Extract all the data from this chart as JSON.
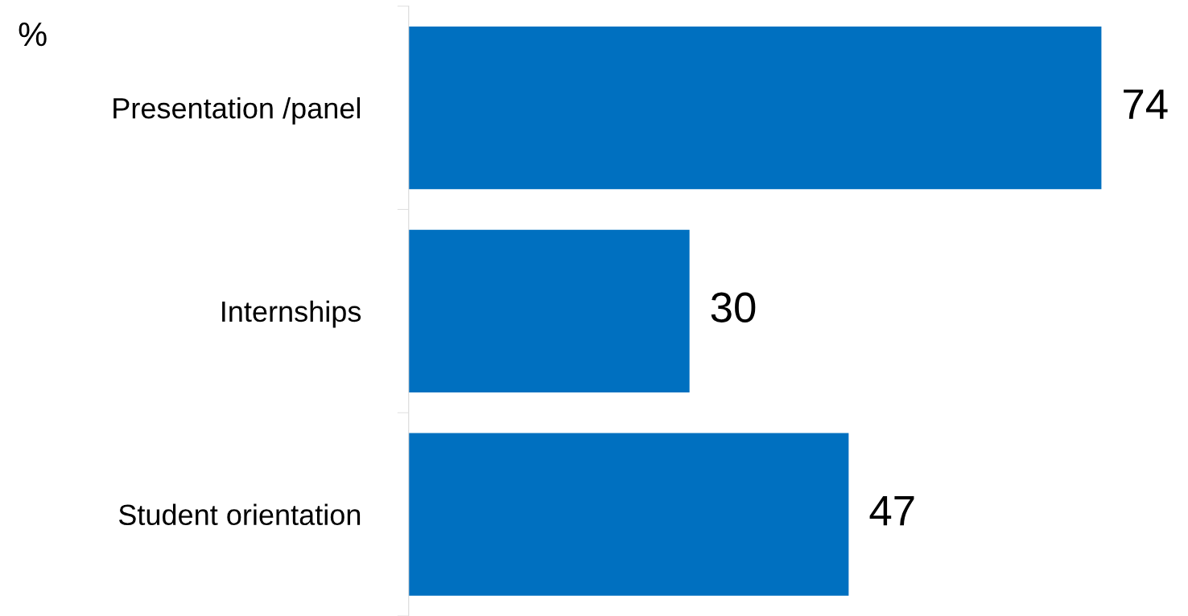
{
  "chart_data": {
    "type": "bar",
    "orientation": "horizontal",
    "ylabel": "%",
    "categories": [
      "Presentation /panel",
      "Internships",
      "Student orientation"
    ],
    "values": [
      74,
      30,
      47
    ],
    "color": "#0070c0",
    "data_labels": true,
    "grid": false
  }
}
